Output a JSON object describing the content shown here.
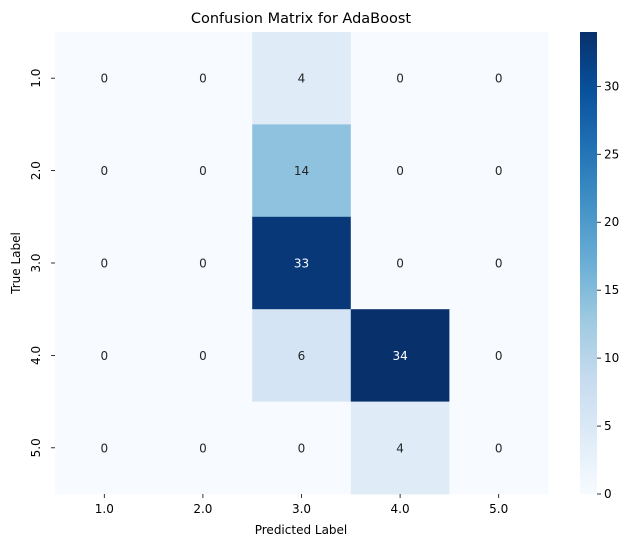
{
  "chart_data": {
    "type": "heatmap",
    "title": "Confusion Matrix for AdaBoost",
    "xlabel": "Predicted Label",
    "ylabel": "True Label",
    "x_categories": [
      "1.0",
      "2.0",
      "3.0",
      "4.0",
      "5.0"
    ],
    "y_categories": [
      "1.0",
      "2.0",
      "3.0",
      "4.0",
      "5.0"
    ],
    "values": [
      [
        0,
        0,
        4,
        0,
        0
      ],
      [
        0,
        0,
        14,
        0,
        0
      ],
      [
        0,
        0,
        33,
        0,
        0
      ],
      [
        0,
        0,
        6,
        34,
        0
      ],
      [
        0,
        0,
        0,
        4,
        0
      ]
    ],
    "colormap": "Blues",
    "colorbar": {
      "min": 0,
      "max": 34,
      "ticks": [
        "0",
        "5",
        "10",
        "15",
        "20",
        "25",
        "30"
      ]
    },
    "annotation_colors": {
      "light_cell": "#262626",
      "dark_cell": "#ffffff"
    },
    "grid": false,
    "legend": "colorbar-right"
  }
}
